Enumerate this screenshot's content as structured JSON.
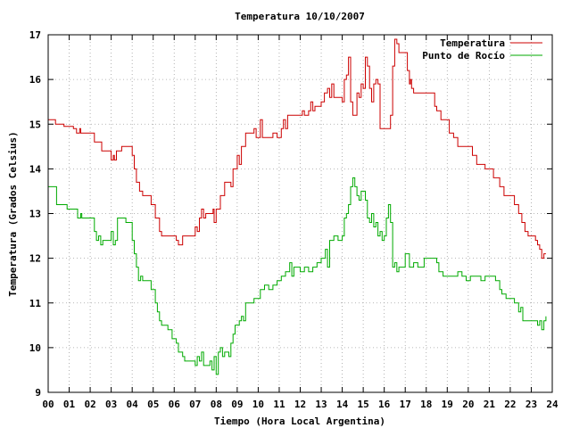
{
  "chart_data": {
    "type": "line",
    "title": "Temperatura 10/10/2007",
    "xlabel": "Tiempo (Hora Local Argentina)",
    "ylabel": "Temperatura (Grados Celsius)",
    "xlim": [
      0,
      24
    ],
    "ylim": [
      9,
      17
    ],
    "xticks": [
      "00",
      "01",
      "02",
      "03",
      "04",
      "05",
      "06",
      "07",
      "08",
      "09",
      "10",
      "11",
      "12",
      "13",
      "14",
      "15",
      "16",
      "17",
      "18",
      "19",
      "20",
      "21",
      "22",
      "23",
      "24"
    ],
    "yticks": [
      "9",
      "10",
      "11",
      "12",
      "13",
      "14",
      "15",
      "16",
      "17"
    ],
    "grid": true,
    "legend": "top-right",
    "series": [
      {
        "name": "Temperatura",
        "color": "#cc0000",
        "points": [
          [
            0.0,
            15.1
          ],
          [
            0.3,
            15.1
          ],
          [
            0.35,
            15.0
          ],
          [
            0.7,
            15.0
          ],
          [
            0.75,
            14.95
          ],
          [
            1.2,
            14.9
          ],
          [
            1.35,
            14.8
          ],
          [
            1.5,
            14.9
          ],
          [
            1.55,
            14.8
          ],
          [
            2.1,
            14.8
          ],
          [
            2.2,
            14.6
          ],
          [
            2.55,
            14.4
          ],
          [
            2.85,
            14.4
          ],
          [
            3.0,
            14.2
          ],
          [
            3.1,
            14.3
          ],
          [
            3.15,
            14.2
          ],
          [
            3.25,
            14.4
          ],
          [
            3.5,
            14.5
          ],
          [
            3.85,
            14.5
          ],
          [
            4.0,
            14.3
          ],
          [
            4.1,
            14.0
          ],
          [
            4.2,
            13.7
          ],
          [
            4.35,
            13.5
          ],
          [
            4.5,
            13.4
          ],
          [
            4.8,
            13.4
          ],
          [
            4.9,
            13.2
          ],
          [
            5.1,
            12.9
          ],
          [
            5.3,
            12.6
          ],
          [
            5.4,
            12.5
          ],
          [
            6.0,
            12.5
          ],
          [
            6.1,
            12.4
          ],
          [
            6.2,
            12.3
          ],
          [
            6.3,
            12.3
          ],
          [
            6.4,
            12.5
          ],
          [
            6.9,
            12.5
          ],
          [
            7.0,
            12.7
          ],
          [
            7.1,
            12.6
          ],
          [
            7.2,
            12.9
          ],
          [
            7.3,
            13.1
          ],
          [
            7.4,
            12.9
          ],
          [
            7.5,
            13.0
          ],
          [
            7.7,
            13.0
          ],
          [
            7.85,
            13.1
          ],
          [
            7.9,
            12.8
          ],
          [
            8.0,
            13.1
          ],
          [
            8.2,
            13.4
          ],
          [
            8.4,
            13.7
          ],
          [
            8.7,
            13.6
          ],
          [
            8.8,
            14.0
          ],
          [
            9.0,
            14.3
          ],
          [
            9.1,
            14.1
          ],
          [
            9.2,
            14.5
          ],
          [
            9.4,
            14.8
          ],
          [
            9.8,
            14.9
          ],
          [
            9.9,
            14.7
          ],
          [
            10.1,
            15.1
          ],
          [
            10.2,
            14.7
          ],
          [
            10.6,
            14.7
          ],
          [
            10.7,
            14.8
          ],
          [
            10.9,
            14.7
          ],
          [
            11.1,
            14.9
          ],
          [
            11.2,
            15.1
          ],
          [
            11.3,
            14.9
          ],
          [
            11.4,
            15.2
          ],
          [
            12.0,
            15.2
          ],
          [
            12.1,
            15.3
          ],
          [
            12.2,
            15.2
          ],
          [
            12.4,
            15.3
          ],
          [
            12.5,
            15.5
          ],
          [
            12.6,
            15.3
          ],
          [
            12.7,
            15.4
          ],
          [
            13.0,
            15.5
          ],
          [
            13.15,
            15.7
          ],
          [
            13.3,
            15.8
          ],
          [
            13.4,
            15.6
          ],
          [
            13.5,
            15.9
          ],
          [
            13.6,
            15.6
          ],
          [
            14.0,
            15.5
          ],
          [
            14.1,
            16.0
          ],
          [
            14.2,
            16.1
          ],
          [
            14.3,
            16.5
          ],
          [
            14.4,
            15.5
          ],
          [
            14.5,
            15.2
          ],
          [
            14.7,
            15.7
          ],
          [
            14.8,
            15.6
          ],
          [
            14.9,
            15.9
          ],
          [
            15.0,
            15.8
          ],
          [
            15.1,
            16.5
          ],
          [
            15.2,
            16.3
          ],
          [
            15.3,
            15.8
          ],
          [
            15.4,
            15.5
          ],
          [
            15.5,
            15.9
          ],
          [
            15.6,
            16.0
          ],
          [
            15.7,
            15.9
          ],
          [
            15.8,
            14.9
          ],
          [
            16.2,
            14.9
          ],
          [
            16.3,
            15.2
          ],
          [
            16.4,
            16.3
          ],
          [
            16.5,
            16.9
          ],
          [
            16.6,
            16.8
          ],
          [
            16.7,
            16.6
          ],
          [
            17.0,
            16.6
          ],
          [
            17.1,
            16.2
          ],
          [
            17.2,
            15.9
          ],
          [
            17.25,
            16.0
          ],
          [
            17.3,
            15.8
          ],
          [
            17.4,
            15.7
          ],
          [
            18.3,
            15.7
          ],
          [
            18.4,
            15.4
          ],
          [
            18.5,
            15.3
          ],
          [
            18.7,
            15.1
          ],
          [
            18.9,
            15.1
          ],
          [
            19.1,
            14.8
          ],
          [
            19.3,
            14.7
          ],
          [
            19.5,
            14.5
          ],
          [
            20.0,
            14.5
          ],
          [
            20.2,
            14.3
          ],
          [
            20.4,
            14.1
          ],
          [
            20.6,
            14.1
          ],
          [
            20.8,
            14.0
          ],
          [
            21.0,
            14.0
          ],
          [
            21.2,
            13.8
          ],
          [
            21.3,
            13.8
          ],
          [
            21.5,
            13.6
          ],
          [
            21.7,
            13.4
          ],
          [
            22.1,
            13.4
          ],
          [
            22.2,
            13.2
          ],
          [
            22.4,
            13.0
          ],
          [
            22.55,
            12.8
          ],
          [
            22.7,
            12.6
          ],
          [
            22.85,
            12.5
          ],
          [
            23.1,
            12.5
          ],
          [
            23.2,
            12.4
          ],
          [
            23.3,
            12.3
          ],
          [
            23.4,
            12.2
          ],
          [
            23.5,
            12.0
          ],
          [
            23.6,
            12.1
          ],
          [
            23.7,
            12.1
          ]
        ]
      },
      {
        "name": "Punto de Rocío",
        "color": "#00aa00",
        "points": [
          [
            0.0,
            13.6
          ],
          [
            0.35,
            13.6
          ],
          [
            0.4,
            13.2
          ],
          [
            0.8,
            13.2
          ],
          [
            0.9,
            13.1
          ],
          [
            1.3,
            13.1
          ],
          [
            1.4,
            12.9
          ],
          [
            1.55,
            13.0
          ],
          [
            1.6,
            12.9
          ],
          [
            2.1,
            12.9
          ],
          [
            2.2,
            12.6
          ],
          [
            2.3,
            12.4
          ],
          [
            2.4,
            12.5
          ],
          [
            2.5,
            12.3
          ],
          [
            2.6,
            12.4
          ],
          [
            2.8,
            12.4
          ],
          [
            3.0,
            12.6
          ],
          [
            3.1,
            12.3
          ],
          [
            3.2,
            12.4
          ],
          [
            3.3,
            12.9
          ],
          [
            3.5,
            12.9
          ],
          [
            3.7,
            12.8
          ],
          [
            3.9,
            12.8
          ],
          [
            4.0,
            12.4
          ],
          [
            4.1,
            12.1
          ],
          [
            4.2,
            11.8
          ],
          [
            4.3,
            11.5
          ],
          [
            4.4,
            11.6
          ],
          [
            4.5,
            11.5
          ],
          [
            4.8,
            11.5
          ],
          [
            4.9,
            11.3
          ],
          [
            5.1,
            11.0
          ],
          [
            5.2,
            10.8
          ],
          [
            5.3,
            10.6
          ],
          [
            5.4,
            10.5
          ],
          [
            5.7,
            10.4
          ],
          [
            5.9,
            10.2
          ],
          [
            6.1,
            10.1
          ],
          [
            6.2,
            9.9
          ],
          [
            6.4,
            9.8
          ],
          [
            6.5,
            9.7
          ],
          [
            6.9,
            9.7
          ],
          [
            7.0,
            9.6
          ],
          [
            7.1,
            9.8
          ],
          [
            7.2,
            9.7
          ],
          [
            7.3,
            9.9
          ],
          [
            7.4,
            9.6
          ],
          [
            7.6,
            9.6
          ],
          [
            7.7,
            9.7
          ],
          [
            7.8,
            9.5
          ],
          [
            7.9,
            9.8
          ],
          [
            8.0,
            9.4
          ],
          [
            8.1,
            9.9
          ],
          [
            8.2,
            10.0
          ],
          [
            8.3,
            9.8
          ],
          [
            8.4,
            9.9
          ],
          [
            8.6,
            9.8
          ],
          [
            8.7,
            10.1
          ],
          [
            8.8,
            10.3
          ],
          [
            8.9,
            10.5
          ],
          [
            9.1,
            10.6
          ],
          [
            9.2,
            10.7
          ],
          [
            9.3,
            10.6
          ],
          [
            9.4,
            11.0
          ],
          [
            9.6,
            11.0
          ],
          [
            9.8,
            11.1
          ],
          [
            10.0,
            11.1
          ],
          [
            10.1,
            11.3
          ],
          [
            10.3,
            11.4
          ],
          [
            10.5,
            11.3
          ],
          [
            10.7,
            11.4
          ],
          [
            10.9,
            11.5
          ],
          [
            11.1,
            11.6
          ],
          [
            11.3,
            11.7
          ],
          [
            11.5,
            11.9
          ],
          [
            11.6,
            11.6
          ],
          [
            11.7,
            11.8
          ],
          [
            11.9,
            11.8
          ],
          [
            12.0,
            11.7
          ],
          [
            12.2,
            11.8
          ],
          [
            12.4,
            11.7
          ],
          [
            12.6,
            11.8
          ],
          [
            12.8,
            11.9
          ],
          [
            13.0,
            12.0
          ],
          [
            13.2,
            12.2
          ],
          [
            13.3,
            11.8
          ],
          [
            13.4,
            12.4
          ],
          [
            13.6,
            12.5
          ],
          [
            13.8,
            12.4
          ],
          [
            14.0,
            12.5
          ],
          [
            14.1,
            12.9
          ],
          [
            14.2,
            13.0
          ],
          [
            14.3,
            13.2
          ],
          [
            14.4,
            13.6
          ],
          [
            14.5,
            13.8
          ],
          [
            14.6,
            13.6
          ],
          [
            14.7,
            13.4
          ],
          [
            14.8,
            13.3
          ],
          [
            14.9,
            13.5
          ],
          [
            15.1,
            13.3
          ],
          [
            15.2,
            12.9
          ],
          [
            15.3,
            12.8
          ],
          [
            15.4,
            13.0
          ],
          [
            15.5,
            12.7
          ],
          [
            15.6,
            12.8
          ],
          [
            15.7,
            12.5
          ],
          [
            15.8,
            12.6
          ],
          [
            15.9,
            12.4
          ],
          [
            16.0,
            12.5
          ],
          [
            16.1,
            12.9
          ],
          [
            16.2,
            13.2
          ],
          [
            16.3,
            12.8
          ],
          [
            16.4,
            11.8
          ],
          [
            16.5,
            11.9
          ],
          [
            16.6,
            11.7
          ],
          [
            16.7,
            11.8
          ],
          [
            16.8,
            11.8
          ],
          [
            17.0,
            12.1
          ],
          [
            17.2,
            11.8
          ],
          [
            17.4,
            11.9
          ],
          [
            17.6,
            11.8
          ],
          [
            17.9,
            12.0
          ],
          [
            18.2,
            12.0
          ],
          [
            18.5,
            11.9
          ],
          [
            18.6,
            11.7
          ],
          [
            18.8,
            11.6
          ],
          [
            19.0,
            11.6
          ],
          [
            19.4,
            11.6
          ],
          [
            19.5,
            11.7
          ],
          [
            19.7,
            11.6
          ],
          [
            19.9,
            11.5
          ],
          [
            20.1,
            11.6
          ],
          [
            20.4,
            11.6
          ],
          [
            20.6,
            11.5
          ],
          [
            20.8,
            11.6
          ],
          [
            21.2,
            11.6
          ],
          [
            21.3,
            11.5
          ],
          [
            21.5,
            11.3
          ],
          [
            21.6,
            11.2
          ],
          [
            21.8,
            11.1
          ],
          [
            22.0,
            11.1
          ],
          [
            22.2,
            11.0
          ],
          [
            22.4,
            10.8
          ],
          [
            22.5,
            10.9
          ],
          [
            22.6,
            10.6
          ],
          [
            22.8,
            10.6
          ],
          [
            23.0,
            10.6
          ],
          [
            23.2,
            10.6
          ],
          [
            23.3,
            10.5
          ],
          [
            23.4,
            10.6
          ],
          [
            23.5,
            10.4
          ],
          [
            23.6,
            10.6
          ],
          [
            23.7,
            10.7
          ]
        ]
      }
    ]
  }
}
